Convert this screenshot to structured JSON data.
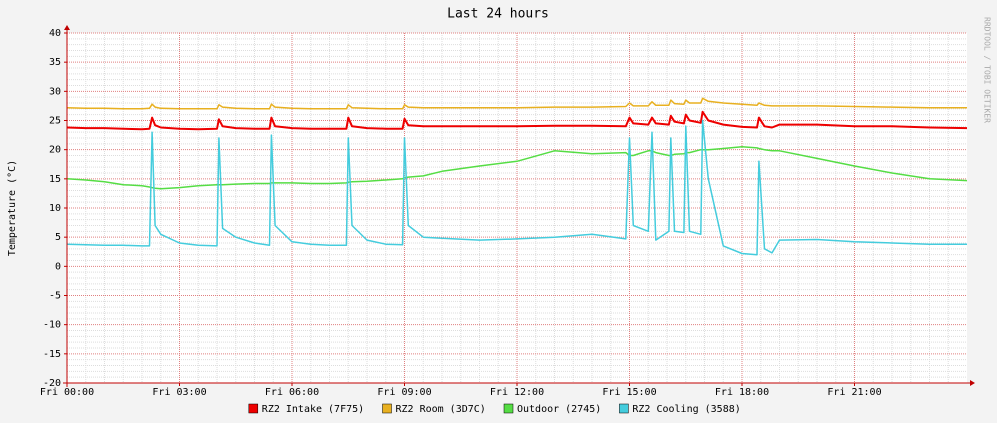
{
  "chart_data": {
    "type": "line",
    "title": "Last 24 hours",
    "y_label": "Temperature (°C)",
    "watermark": "RRDTOOL / TOBI OETIKER",
    "xlim": [
      0,
      24
    ],
    "xticks": [
      {
        "value": 0,
        "label": "Fri 00:00"
      },
      {
        "value": 3,
        "label": "Fri 03:00"
      },
      {
        "value": 6,
        "label": "Fri 06:00"
      },
      {
        "value": 9,
        "label": "Fri 09:00"
      },
      {
        "value": 12,
        "label": "Fri 12:00"
      },
      {
        "value": 15,
        "label": "Fri 15:00"
      },
      {
        "value": 18,
        "label": "Fri 18:00"
      },
      {
        "value": 21,
        "label": "Fri 21:00"
      }
    ],
    "ylim": [
      -20,
      40
    ],
    "yticks": [
      -20,
      -15,
      -10,
      -5,
      0,
      5,
      10,
      15,
      20,
      25,
      30,
      35,
      40
    ],
    "grid": true,
    "x": [
      0,
      0.5,
      1,
      1.5,
      2,
      2.2,
      2.27,
      2.35,
      2.5,
      3,
      3.5,
      4.0,
      4.05,
      4.15,
      4.5,
      5,
      5.4,
      5.45,
      5.55,
      6,
      6.5,
      7,
      7.45,
      7.5,
      7.6,
      8,
      8.5,
      8.95,
      9.0,
      9.1,
      9.5,
      10,
      11,
      12,
      13,
      14,
      14.9,
      15.0,
      15.1,
      15.5,
      15.6,
      15.7,
      16.05,
      16.1,
      16.2,
      16.45,
      16.5,
      16.6,
      16.9,
      16.95,
      17.1,
      17.5,
      18,
      18.4,
      18.45,
      18.6,
      18.8,
      19,
      20,
      21,
      22,
      23,
      24
    ],
    "series": [
      {
        "name": "RZ2 Intake (7F75)",
        "color": "#ee0000",
        "values": [
          23.8,
          23.7,
          23.7,
          23.6,
          23.5,
          23.6,
          25.5,
          24.2,
          23.8,
          23.6,
          23.5,
          23.6,
          25.2,
          24.0,
          23.7,
          23.6,
          23.6,
          25.5,
          24.0,
          23.7,
          23.6,
          23.6,
          23.6,
          25.5,
          24.0,
          23.7,
          23.6,
          23.6,
          25.3,
          24.2,
          24.0,
          24.0,
          24.0,
          24.0,
          24.1,
          24.1,
          24.0,
          25.5,
          24.5,
          24.3,
          25.5,
          24.5,
          24.3,
          25.8,
          24.8,
          24.5,
          26.0,
          25.0,
          24.6,
          26.5,
          25.0,
          24.3,
          23.9,
          23.8,
          25.5,
          24.0,
          23.8,
          24.3,
          24.3,
          24.0,
          24.0,
          23.8,
          23.7
        ]
      },
      {
        "name": "RZ2 Room (3D7C)",
        "color": "#e8b020",
        "values": [
          27.2,
          27.1,
          27.1,
          27.0,
          27.0,
          27.1,
          27.8,
          27.3,
          27.1,
          27.0,
          27.0,
          27.0,
          27.7,
          27.3,
          27.1,
          27.0,
          27.0,
          27.8,
          27.3,
          27.1,
          27.0,
          27.0,
          27.0,
          27.7,
          27.2,
          27.1,
          27.0,
          27.0,
          27.7,
          27.3,
          27.2,
          27.2,
          27.2,
          27.2,
          27.3,
          27.3,
          27.4,
          28.0,
          27.5,
          27.5,
          28.2,
          27.6,
          27.6,
          28.5,
          27.9,
          27.8,
          28.5,
          28.0,
          28.0,
          28.8,
          28.3,
          28.0,
          27.8,
          27.6,
          28.0,
          27.6,
          27.5,
          27.5,
          27.5,
          27.4,
          27.3,
          27.2,
          27.2
        ]
      },
      {
        "name": "Outdoor (2745)",
        "color": "#55dd44",
        "values": [
          15,
          14.8,
          14.5,
          14.0,
          13.8,
          13.6,
          13.5,
          13.4,
          13.3,
          13.5,
          13.8,
          14.0,
          14.0,
          14.0,
          14.1,
          14.2,
          14.2,
          14.3,
          14.3,
          14.3,
          14.2,
          14.2,
          14.3,
          14.4,
          14.5,
          14.6,
          14.8,
          15.0,
          15.2,
          15.3,
          15.5,
          16.3,
          17.2,
          18.0,
          19.8,
          19.3,
          19.5,
          19.0,
          19.0,
          19.8,
          19.8,
          19.5,
          19.0,
          19.0,
          19.2,
          19.3,
          19.5,
          19.5,
          20.0,
          20.0,
          20.0,
          20.2,
          20.5,
          20.3,
          20.2,
          20.0,
          19.8,
          19.8,
          18.5,
          17.2,
          16.0,
          15.0,
          14.7
        ]
      },
      {
        "name": "RZ2 Cooling (3588)",
        "color": "#44ccdd",
        "values": [
          3.8,
          3.7,
          3.6,
          3.6,
          3.5,
          3.5,
          23,
          7,
          5.5,
          4.0,
          3.6,
          3.5,
          22,
          6.5,
          5,
          4,
          3.6,
          22.5,
          7,
          4.2,
          3.8,
          3.6,
          3.6,
          22,
          7,
          4.5,
          3.8,
          3.7,
          22,
          7,
          5,
          4.8,
          4.5,
          4.7,
          5,
          5.5,
          4.7,
          22,
          7,
          6,
          23,
          4.5,
          6,
          22,
          6,
          5.8,
          24,
          6,
          5.5,
          25,
          15,
          3.5,
          2.2,
          2,
          18,
          3,
          2.3,
          4.5,
          4.6,
          4.2,
          4.0,
          3.8,
          3.8
        ]
      }
    ]
  }
}
